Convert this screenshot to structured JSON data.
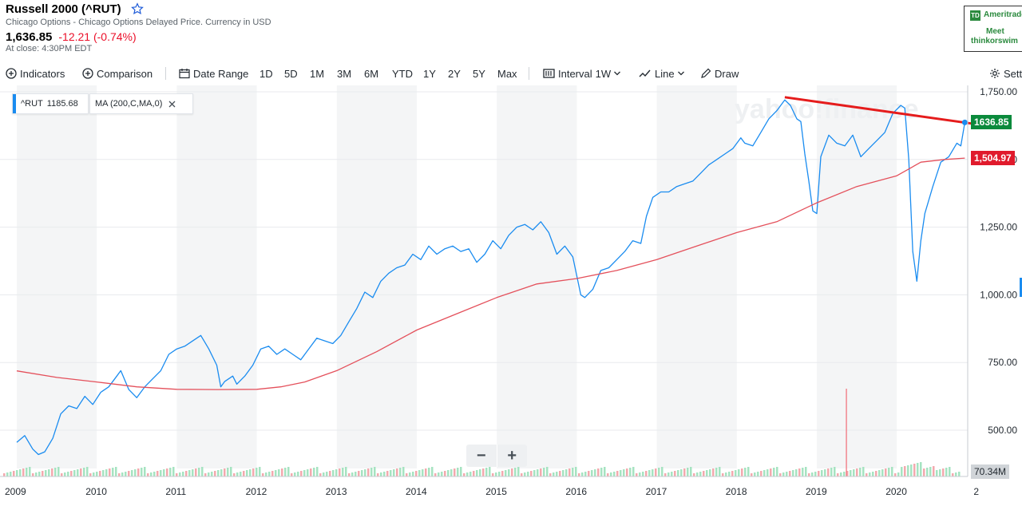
{
  "quote": {
    "title": "Russell 2000 (^RUT)",
    "subtitle": "Chicago Options - Chicago Options Delayed Price. Currency in USD",
    "price": "1,636.85",
    "change": "-12.21 (-0.74%)",
    "close_time": "At close: 4:30PM EDT"
  },
  "ad": {
    "brand": "Ameritrade",
    "logo": "TD",
    "line1": "Meet",
    "line2": "thinkorswim"
  },
  "toolbar": {
    "indicators": "Indicators",
    "comparison": "Comparison",
    "date_range": "Date Range",
    "ranges": [
      "1D",
      "5D",
      "1M",
      "3M",
      "6M",
      "YTD",
      "1Y",
      "2Y",
      "5Y",
      "Max"
    ],
    "interval_label": "Interval",
    "interval_value": "1W",
    "line": "Line",
    "draw": "Draw",
    "settings": "Sett"
  },
  "legend": {
    "symbol": "^RUT",
    "symbol_value": "1185.68",
    "ma": "MA (200,C,MA,0)"
  },
  "price_tags": {
    "last": "1636.85",
    "ma": "1,504.97",
    "volume": "70.34M"
  },
  "watermark": "yahoo!finance",
  "colors": {
    "price_line": "#1a8cf0",
    "ma_line": "#e4505b",
    "trend_line": "#e51c1c",
    "last_tag": "#0b8a3c",
    "ma_tag": "#e01a2c"
  },
  "chart_data": {
    "type": "line",
    "x_unit": "year",
    "xlim": [
      2009.0,
      2021.0
    ],
    "ylim": [
      390,
      1710
    ],
    "x_ticks": [
      "2009",
      "2010",
      "2011",
      "2012",
      "2013",
      "2014",
      "2015",
      "2016",
      "2017",
      "2018",
      "2019",
      "2020",
      "2"
    ],
    "y_ticks": [
      "1,750.00",
      "1,500.00",
      "1,250.00",
      "1,000.00",
      "750.00",
      "500.00"
    ],
    "series": [
      {
        "name": "^RUT",
        "color": "#1a8cf0",
        "x": [
          2009.0,
          2009.1,
          2009.2,
          2009.27,
          2009.35,
          2009.45,
          2009.55,
          2009.65,
          2009.75,
          2009.85,
          2009.95,
          2010.05,
          2010.15,
          2010.25,
          2010.3,
          2010.4,
          2010.5,
          2010.6,
          2010.7,
          2010.8,
          2010.9,
          2011.0,
          2011.1,
          2011.2,
          2011.3,
          2011.4,
          2011.5,
          2011.55,
          2011.6,
          2011.7,
          2011.75,
          2011.85,
          2011.95,
          2012.05,
          2012.15,
          2012.25,
          2012.35,
          2012.45,
          2012.55,
          2012.65,
          2012.75,
          2012.85,
          2012.95,
          2013.05,
          2013.15,
          2013.25,
          2013.35,
          2013.45,
          2013.55,
          2013.65,
          2013.75,
          2013.85,
          2013.95,
          2014.05,
          2014.15,
          2014.25,
          2014.35,
          2014.45,
          2014.55,
          2014.65,
          2014.75,
          2014.85,
          2014.95,
          2015.05,
          2015.15,
          2015.25,
          2015.35,
          2015.45,
          2015.55,
          2015.65,
          2015.75,
          2015.85,
          2015.95,
          2016.05,
          2016.1,
          2016.2,
          2016.3,
          2016.4,
          2016.5,
          2016.6,
          2016.7,
          2016.8,
          2016.87,
          2016.95,
          2017.05,
          2017.15,
          2017.25,
          2017.35,
          2017.45,
          2017.55,
          2017.65,
          2017.75,
          2017.85,
          2017.95,
          2018.05,
          2018.1,
          2018.2,
          2018.3,
          2018.4,
          2018.5,
          2018.6,
          2018.67,
          2018.75,
          2018.8,
          2018.85,
          2018.9,
          2018.95,
          2019.0,
          2019.05,
          2019.15,
          2019.25,
          2019.35,
          2019.45,
          2019.55,
          2019.65,
          2019.75,
          2019.85,
          2019.95,
          2020.05,
          2020.1,
          2020.15,
          2020.2,
          2020.25,
          2020.3,
          2020.35,
          2020.45,
          2020.55,
          2020.65,
          2020.75,
          2020.8,
          2020.85
        ],
        "y": [
          455,
          480,
          430,
          410,
          420,
          470,
          560,
          590,
          580,
          625,
          595,
          640,
          660,
          700,
          720,
          650,
          620,
          660,
          690,
          720,
          780,
          800,
          810,
          830,
          850,
          800,
          740,
          660,
          680,
          700,
          670,
          700,
          740,
          800,
          810,
          780,
          800,
          780,
          760,
          800,
          840,
          830,
          820,
          850,
          900,
          950,
          1010,
          990,
          1050,
          1080,
          1100,
          1110,
          1150,
          1130,
          1180,
          1150,
          1170,
          1180,
          1160,
          1170,
          1120,
          1150,
          1200,
          1170,
          1220,
          1250,
          1260,
          1240,
          1270,
          1230,
          1150,
          1180,
          1140,
          1000,
          990,
          1020,
          1090,
          1100,
          1130,
          1160,
          1200,
          1190,
          1290,
          1360,
          1380,
          1380,
          1400,
          1410,
          1420,
          1450,
          1480,
          1500,
          1520,
          1540,
          1580,
          1560,
          1550,
          1600,
          1650,
          1680,
          1720,
          1700,
          1650,
          1640,
          1520,
          1420,
          1310,
          1300,
          1510,
          1590,
          1560,
          1550,
          1590,
          1510,
          1540,
          1570,
          1600,
          1670,
          1700,
          1690,
          1500,
          1160,
          1050,
          1200,
          1300,
          1400,
          1490,
          1510,
          1560,
          1550,
          1636.85
        ]
      },
      {
        "name": "MA (200,C,MA,0)",
        "color": "#e4505b",
        "x": [
          2009.0,
          2009.5,
          2010.0,
          2010.5,
          2011.0,
          2011.5,
          2012.0,
          2012.3,
          2012.6,
          2013.0,
          2013.5,
          2014.0,
          2014.5,
          2015.0,
          2015.5,
          2016.0,
          2016.5,
          2017.0,
          2017.5,
          2018.0,
          2018.5,
          2019.0,
          2019.5,
          2020.0,
          2020.3,
          2020.6,
          2020.85
        ],
        "y": [
          719,
          695,
          678,
          660,
          651,
          650,
          651,
          660,
          678,
          720,
          790,
          870,
          930,
          990,
          1040,
          1060,
          1090,
          1130,
          1180,
          1230,
          1270,
          1340,
          1400,
          1440,
          1490,
          1500,
          1504.97
        ]
      },
      {
        "name": "trend",
        "color": "#e51c1c",
        "x": [
          2018.6,
          2021.0
        ],
        "y": [
          1730,
          1630
        ]
      }
    ],
    "volume_spike_at": 2019.37,
    "grid": true,
    "legend_position": "top-left"
  }
}
